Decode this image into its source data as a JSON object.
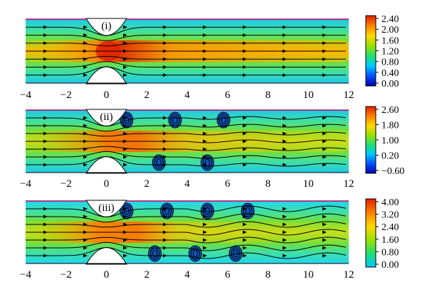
{
  "chart_data": [
    {
      "type": "heatmap",
      "panel_label": "(i)",
      "xlim": [
        -4,
        12
      ],
      "x_ticks": [
        "−4",
        "−2",
        "0",
        "2",
        "4",
        "6",
        "8",
        "10",
        "12"
      ],
      "colorbar": {
        "ticks": [
          "2.40",
          "2.00",
          "1.60",
          "1.20",
          "0.80",
          "0.40",
          "0.00"
        ],
        "min": 0.0,
        "max": 2.4,
        "colors": [
          "#0000b0",
          "#0050ff",
          "#00c8ff",
          "#20e070",
          "#9be000",
          "#ffd800",
          "#ff8000",
          "#e02000"
        ]
      },
      "vortex_pairs": 0
    },
    {
      "type": "heatmap",
      "panel_label": "(ii)",
      "xlim": [
        -4,
        12
      ],
      "x_ticks": [
        "−4",
        "−2",
        "0",
        "2",
        "4",
        "6",
        "8",
        "10",
        "12"
      ],
      "colorbar": {
        "ticks": [
          "2.60",
          "1.80",
          "1.00",
          "0.20",
          "−0.60"
        ],
        "min": -0.6,
        "max": 3.0,
        "colors": [
          "#0000b0",
          "#0050ff",
          "#00c8ff",
          "#20e070",
          "#9be000",
          "#ffd800",
          "#ff8000",
          "#e02000"
        ]
      },
      "vortex_pairs": 5
    },
    {
      "type": "heatmap",
      "panel_label": "(iii)",
      "xlim": [
        -4,
        12
      ],
      "x_ticks": [
        "−4",
        "−2",
        "0",
        "2",
        "4",
        "6",
        "8",
        "10",
        "12"
      ],
      "colorbar": {
        "ticks": [
          "4.00",
          "3.20",
          "2.40",
          "1.60",
          "0.80",
          "0.00"
        ],
        "min": 0.0,
        "max": 4.4,
        "colors": [
          "#00c8ff",
          "#20e070",
          "#9be000",
          "#ffd800",
          "#ff8000",
          "#e02000"
        ]
      },
      "vortex_pairs": 7
    }
  ]
}
